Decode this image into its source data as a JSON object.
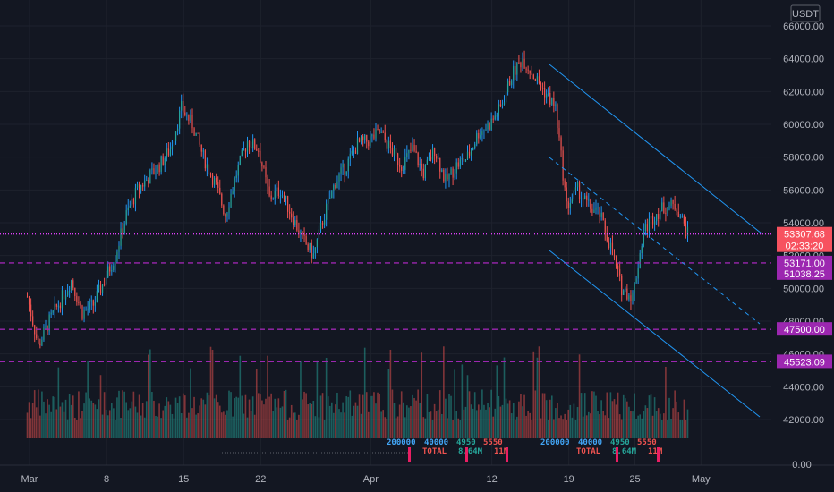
{
  "currency": "USDT",
  "chart_data": {
    "type": "candlestick",
    "y_ticks": [
      "66000.00",
      "64000.00",
      "62000.00",
      "60000.00",
      "58000.00",
      "56000.00",
      "54000.00",
      "52000.00",
      "50000.00",
      "48000.00",
      "46000.00",
      "44000.00",
      "42000.00"
    ],
    "ylim": [
      41000,
      66500
    ],
    "volume_scale_label": "0.00",
    "x_ticks": [
      {
        "label": "Mar",
        "day": 0
      },
      {
        "label": "8",
        "day": 7
      },
      {
        "label": "15",
        "day": 14
      },
      {
        "label": "22",
        "day": 21
      },
      {
        "label": "Apr",
        "day": 31
      },
      {
        "label": "12",
        "day": 42
      },
      {
        "label": "19",
        "day": 49
      },
      {
        "label": "25",
        "day": 55
      },
      {
        "label": "May",
        "day": 61
      }
    ],
    "close_path": [
      [
        0,
        49500
      ],
      [
        1,
        46500
      ],
      [
        2,
        48000
      ],
      [
        4,
        50500
      ],
      [
        5,
        48500
      ],
      [
        6,
        49000
      ],
      [
        8,
        52000
      ],
      [
        9,
        54500
      ],
      [
        10,
        56000
      ],
      [
        12,
        57500
      ],
      [
        13,
        58500
      ],
      [
        14,
        61000
      ],
      [
        15,
        60000
      ],
      [
        16,
        58000
      ],
      [
        17,
        56500
      ],
      [
        18,
        54500
      ],
      [
        19,
        57000
      ],
      [
        20,
        59000
      ],
      [
        21,
        58500
      ],
      [
        22,
        55500
      ],
      [
        23,
        56000
      ],
      [
        24,
        54500
      ],
      [
        25,
        53000
      ],
      [
        26,
        52000
      ],
      [
        27,
        54500
      ],
      [
        28,
        56500
      ],
      [
        29,
        57500
      ],
      [
        30,
        58800
      ],
      [
        31,
        59000
      ],
      [
        32,
        59500
      ],
      [
        33,
        58500
      ],
      [
        34,
        57500
      ],
      [
        35,
        58500
      ],
      [
        36,
        57000
      ],
      [
        37,
        58500
      ],
      [
        38,
        56500
      ],
      [
        39,
        57500
      ],
      [
        40,
        58000
      ],
      [
        41,
        59500
      ],
      [
        42,
        60000
      ],
      [
        43,
        61000
      ],
      [
        44,
        63000
      ],
      [
        45,
        64000
      ],
      [
        46,
        63000
      ],
      [
        47,
        62000
      ],
      [
        48,
        61000
      ],
      [
        49,
        55000
      ],
      [
        50,
        56000
      ],
      [
        51,
        55000
      ],
      [
        52,
        54500
      ],
      [
        53,
        52500
      ],
      [
        54,
        50000
      ],
      [
        55,
        49500
      ],
      [
        56,
        53500
      ],
      [
        57,
        54500
      ],
      [
        58,
        55000
      ],
      [
        59,
        55000
      ],
      [
        60,
        53307
      ]
    ],
    "price_levels": [
      {
        "price": "53307.68",
        "value": 53307.68,
        "bg": "#f7525f",
        "countdown": "02:33:20",
        "line": "dotted",
        "line_color": "#e040fb"
      },
      {
        "price": "53171.00",
        "value": 51550,
        "bg": "#9c27b0",
        "line": "dashed",
        "line_color": "#9c27b0"
      },
      {
        "price": "51038.25",
        "value": 50900,
        "bg": "#9c27b0",
        "line": "none"
      },
      {
        "price": "47500.00",
        "value": 47500,
        "bg": "#9c27b0",
        "line": "dashed",
        "line_color": "#9c27b0"
      },
      {
        "price": "45523.09",
        "value": 45523.09,
        "bg": "#9c27b0",
        "line": "dashed",
        "line_color": "#9c27b0"
      }
    ],
    "indicator_labels": [
      {
        "text": "200000",
        "color": "#42a5f5"
      },
      {
        "text": "40000",
        "color": "#42a5f5"
      },
      {
        "text": "4950",
        "color": "#26a69a"
      },
      {
        "text": "5550",
        "color": "#ef5350"
      },
      {
        "text": "TOTAL",
        "color": "#ef5350"
      },
      {
        "text": "8.64M",
        "color": "#26a69a"
      },
      {
        "text": "11M",
        "color": "#ef5350"
      }
    ],
    "colors": {
      "up": "#26a69a",
      "down": "#ef5350",
      "wick_up": "#2196f3",
      "channel": "#2196f3"
    }
  }
}
